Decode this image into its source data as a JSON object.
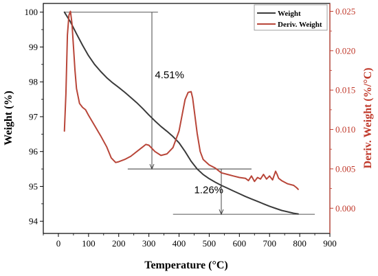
{
  "chart_data": {
    "type": "line",
    "title": "",
    "xlabel": "Temperature (°C)",
    "ylabel_left": "Weight (%)",
    "ylabel_right": "Deriv. Weight (%/°C)",
    "xlim": [
      -50,
      900
    ],
    "ylim_left": [
      93.65,
      100.25
    ],
    "ylim_right": [
      -0.0032,
      0.026
    ],
    "x_ticks": [
      0,
      100,
      200,
      300,
      400,
      500,
      600,
      700,
      800,
      900
    ],
    "y_left_ticks": [
      94,
      95,
      96,
      97,
      98,
      99,
      100
    ],
    "y_right_ticks": [
      "0.000",
      "0.005",
      "0.010",
      "0.015",
      "0.020",
      "0.025"
    ],
    "grid": false,
    "legend_position": "top-right",
    "series": [
      {
        "name": "Weight",
        "axis": "left",
        "color": "#3a3a3a",
        "x": [
          20,
          40,
          60,
          80,
          100,
          120,
          140,
          160,
          180,
          200,
          220,
          240,
          260,
          280,
          300,
          320,
          340,
          360,
          380,
          400,
          420,
          440,
          460,
          480,
          500,
          520,
          540,
          560,
          580,
          600,
          620,
          640,
          660,
          680,
          700,
          720,
          740,
          760,
          780,
          795
        ],
        "y": [
          100.0,
          99.72,
          99.38,
          99.05,
          98.75,
          98.5,
          98.3,
          98.12,
          97.97,
          97.84,
          97.7,
          97.55,
          97.4,
          97.23,
          97.05,
          96.88,
          96.72,
          96.58,
          96.43,
          96.25,
          96.0,
          95.72,
          95.5,
          95.34,
          95.22,
          95.12,
          95.03,
          94.95,
          94.87,
          94.79,
          94.71,
          94.64,
          94.57,
          94.5,
          94.43,
          94.37,
          94.31,
          94.27,
          94.23,
          94.21
        ]
      },
      {
        "name": "Deriv. Weight",
        "axis": "right",
        "color": "#b84538",
        "x": [
          20,
          25,
          30,
          35,
          40,
          45,
          50,
          55,
          60,
          70,
          80,
          90,
          100,
          120,
          140,
          160,
          175,
          190,
          200,
          220,
          240,
          260,
          280,
          290,
          300,
          320,
          340,
          360,
          380,
          400,
          410,
          420,
          430,
          440,
          445,
          450,
          460,
          470,
          480,
          500,
          520,
          540,
          560,
          580,
          600,
          620,
          630,
          640,
          650,
          660,
          670,
          680,
          690,
          700,
          710,
          720,
          725,
          730,
          740,
          760,
          780,
          790,
          795
        ],
        "y": [
          0.0098,
          0.0145,
          0.022,
          0.0245,
          0.025,
          0.0235,
          0.0205,
          0.0175,
          0.0152,
          0.0133,
          0.0128,
          0.0125,
          0.0118,
          0.0105,
          0.0092,
          0.0078,
          0.0064,
          0.0058,
          0.0059,
          0.0062,
          0.0066,
          0.0072,
          0.0078,
          0.0081,
          0.008,
          0.0072,
          0.0067,
          0.0069,
          0.0077,
          0.0098,
          0.0118,
          0.0138,
          0.0147,
          0.0148,
          0.014,
          0.0125,
          0.0095,
          0.0072,
          0.0062,
          0.0055,
          0.0051,
          0.0045,
          0.0043,
          0.0041,
          0.0039,
          0.0038,
          0.0035,
          0.0041,
          0.0034,
          0.0039,
          0.0037,
          0.0043,
          0.0037,
          0.0041,
          0.0036,
          0.0047,
          0.0043,
          0.0038,
          0.0035,
          0.0031,
          0.0029,
          0.0026,
          0.0024
        ]
      }
    ],
    "annotations": [
      {
        "text": "4.51%",
        "top_line": {
          "x": [
            20,
            330
          ],
          "y": 100.0
        },
        "bottom_line": {
          "x": [
            230,
            640
          ],
          "y": 95.5
        },
        "arrow_x": 310,
        "label_at": {
          "x": 320,
          "y": 98.1
        }
      },
      {
        "text": "1.26%",
        "top_line": {
          "x": [
            230,
            640
          ],
          "y": 95.5
        },
        "bottom_line": {
          "x": [
            380,
            850
          ],
          "y": 94.2
        },
        "arrow_x": 540,
        "label_at": {
          "x": 450,
          "y": 94.8
        }
      }
    ]
  }
}
